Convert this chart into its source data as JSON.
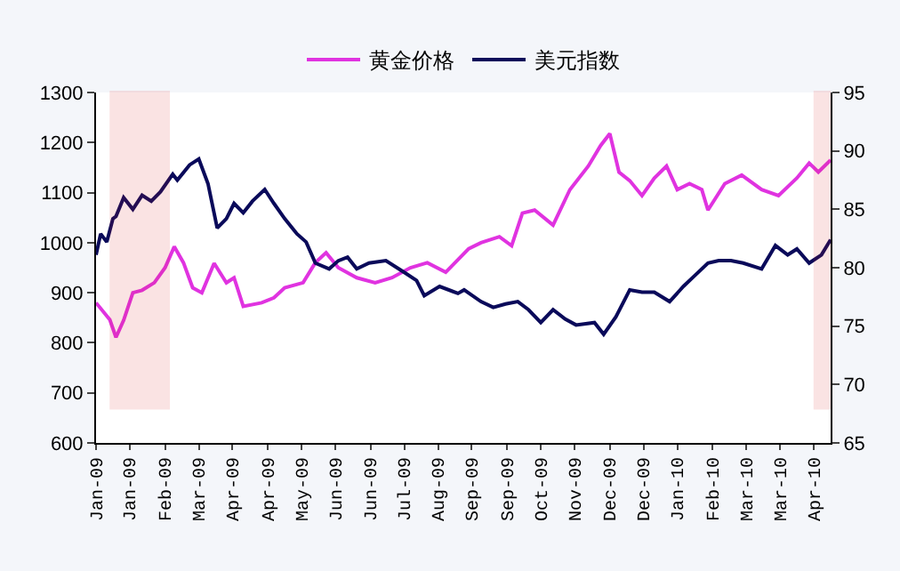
{
  "chart_data": {
    "type": "line",
    "legend": "top",
    "grid": false,
    "marker": "none",
    "line_style": "solid",
    "xlim": [
      "2009-01-02",
      "2010-04-26"
    ],
    "xticks": [
      {
        "value": "2009-01-02",
        "label": "Jan-09"
      },
      {
        "value": "2009-01-24",
        "label": "Jan-09"
      },
      {
        "value": "2009-02-16",
        "label": "Feb-09"
      },
      {
        "value": "2009-03-10",
        "label": "Mar-09"
      },
      {
        "value": "2009-04-01",
        "label": "Apr-09"
      },
      {
        "value": "2009-04-24",
        "label": "Apr-09"
      },
      {
        "value": "2009-05-16",
        "label": "May-09"
      },
      {
        "value": "2009-06-07",
        "label": "Jun-09"
      },
      {
        "value": "2009-06-30",
        "label": "Jun-09"
      },
      {
        "value": "2009-07-22",
        "label": "Jul-09"
      },
      {
        "value": "2009-08-13",
        "label": "Aug-09"
      },
      {
        "value": "2009-09-04",
        "label": "Sep-09"
      },
      {
        "value": "2009-09-27",
        "label": "Sep-09"
      },
      {
        "value": "2009-10-19",
        "label": "Oct-09"
      },
      {
        "value": "2009-11-10",
        "label": "Nov-09"
      },
      {
        "value": "2009-12-03",
        "label": "Dec-09"
      },
      {
        "value": "2009-12-25",
        "label": "Dec-09"
      },
      {
        "value": "2010-01-16",
        "label": "Jan-10"
      },
      {
        "value": "2010-02-08",
        "label": "Feb-10"
      },
      {
        "value": "2010-03-02",
        "label": "Mar-10"
      },
      {
        "value": "2010-03-24",
        "label": "Mar-10"
      },
      {
        "value": "2010-04-15",
        "label": "Apr-10"
      }
    ],
    "ylim": [
      600,
      1300
    ],
    "yticks": [
      600,
      700,
      800,
      900,
      1000,
      1100,
      1200,
      1300
    ],
    "y2lim": [
      65,
      95
    ],
    "y2ticks": [
      65,
      70,
      75,
      80,
      85,
      90,
      95
    ],
    "bands": [
      {
        "axis": "x",
        "from": "2009-01-12",
        "to": "2009-02-18",
        "color": "#dd2222"
      },
      {
        "axis": "x",
        "from": "2010-04-16",
        "to": "2010-04-26",
        "color": "#dd2222"
      }
    ],
    "series": [
      {
        "name": "黄金价格",
        "color": "#e033e0",
        "x": [
          "2009-01-02",
          "2009-01-11",
          "2009-01-15",
          "2009-01-20",
          "2009-01-26",
          "2009-02-01",
          "2009-02-09",
          "2009-02-16",
          "2009-02-22",
          "2009-02-28",
          "2009-03-06",
          "2009-03-12",
          "2009-03-20",
          "2009-03-28",
          "2009-04-02",
          "2009-04-08",
          "2009-04-20",
          "2009-04-28",
          "2009-05-05",
          "2009-05-17",
          "2009-05-25",
          "2009-06-01",
          "2009-06-09",
          "2009-06-21",
          "2009-07-03",
          "2009-07-14",
          "2009-07-26",
          "2009-08-06",
          "2009-08-18",
          "2009-09-02",
          "2009-09-10",
          "2009-09-22",
          "2009-09-30",
          "2009-10-07",
          "2009-10-15",
          "2009-10-27",
          "2009-11-07",
          "2009-11-19",
          "2009-11-27",
          "2009-12-03",
          "2009-12-09",
          "2009-12-16",
          "2009-12-24",
          "2010-01-01",
          "2010-01-09",
          "2010-01-16",
          "2010-01-24",
          "2010-02-01",
          "2010-02-05",
          "2010-02-16",
          "2010-02-27",
          "2010-03-12",
          "2010-03-23",
          "2010-04-04",
          "2010-04-12",
          "2010-04-18",
          "2010-04-26"
        ],
        "values": [
          880,
          846,
          811,
          845,
          900,
          905,
          920,
          950,
          992,
          960,
          910,
          900,
          959,
          920,
          930,
          873,
          880,
          890,
          910,
          920,
          960,
          980,
          950,
          930,
          920,
          930,
          950,
          960,
          941,
          988,
          1000,
          1012,
          994,
          1059,
          1065,
          1035,
          1106,
          1153,
          1194,
          1218,
          1141,
          1124,
          1094,
          1129,
          1153,
          1106,
          1118,
          1106,
          1065,
          1118,
          1135,
          1106,
          1094,
          1129,
          1159,
          1141,
          1165
        ]
      },
      {
        "name": "美元指数",
        "color": "#0a0a5a",
        "axis": "y2",
        "x": [
          "2009-01-02",
          "2009-01-05",
          "2009-01-09",
          "2009-01-13",
          "2009-01-15",
          "2009-01-20",
          "2009-01-26",
          "2009-02-01",
          "2009-02-07",
          "2009-02-13",
          "2009-02-21",
          "2009-02-24",
          "2009-03-04",
          "2009-03-10",
          "2009-03-16",
          "2009-03-22",
          "2009-03-28",
          "2009-04-02",
          "2009-04-08",
          "2009-04-14",
          "2009-04-22",
          "2009-04-28",
          "2009-05-05",
          "2009-05-13",
          "2009-05-19",
          "2009-05-25",
          "2009-06-03",
          "2009-06-09",
          "2009-06-15",
          "2009-06-21",
          "2009-06-29",
          "2009-07-10",
          "2009-07-22",
          "2009-07-30",
          "2009-08-04",
          "2009-08-14",
          "2009-08-26",
          "2009-08-30",
          "2009-09-10",
          "2009-09-18",
          "2009-09-26",
          "2009-10-04",
          "2009-10-11",
          "2009-10-19",
          "2009-10-27",
          "2009-11-04",
          "2009-11-11",
          "2009-11-23",
          "2009-11-29",
          "2009-12-07",
          "2009-12-16",
          "2009-12-24",
          "2010-01-01",
          "2010-01-11",
          "2010-01-20",
          "2010-01-28",
          "2010-02-05",
          "2010-02-12",
          "2010-02-20",
          "2010-02-28",
          "2010-03-12",
          "2010-03-21",
          "2010-03-29",
          "2010-04-04",
          "2010-04-12",
          "2010-04-20",
          "2010-04-26"
        ],
        "values": [
          81.1,
          82.9,
          82.2,
          84.2,
          84.4,
          86.0,
          85.0,
          86.2,
          85.7,
          86.5,
          88.0,
          87.5,
          88.8,
          89.3,
          87.2,
          83.4,
          84.2,
          85.5,
          84.7,
          85.7,
          86.7,
          85.5,
          84.2,
          82.9,
          82.2,
          80.4,
          79.9,
          80.6,
          80.9,
          79.9,
          80.4,
          80.6,
          79.6,
          78.9,
          77.6,
          78.4,
          77.8,
          78.1,
          77.1,
          76.6,
          76.9,
          77.1,
          76.4,
          75.3,
          76.4,
          75.6,
          75.1,
          75.3,
          74.3,
          75.8,
          78.1,
          77.9,
          77.9,
          77.1,
          78.4,
          79.4,
          80.4,
          80.6,
          80.6,
          80.4,
          79.9,
          81.9,
          81.1,
          81.6,
          80.4,
          81.1,
          82.4
        ]
      }
    ]
  }
}
